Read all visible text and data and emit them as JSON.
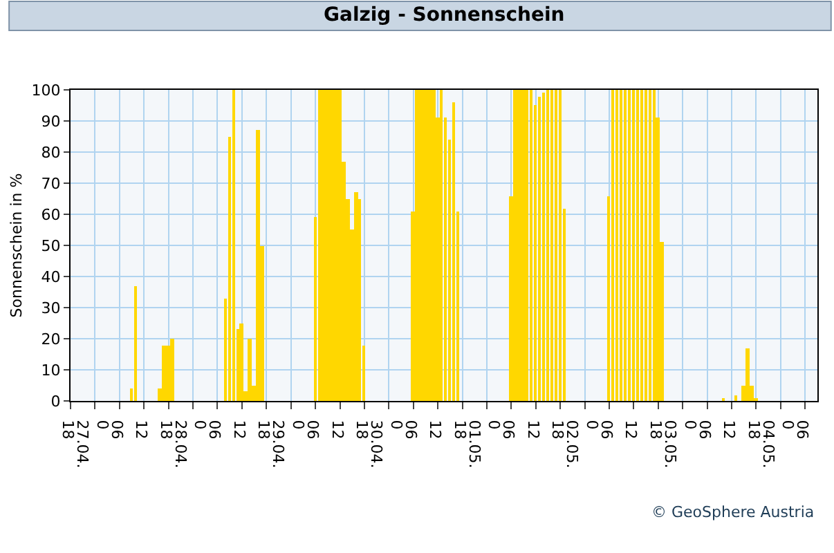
{
  "chart_data": {
    "type": "bar",
    "title": "Galzig - Sonnenschein",
    "ylabel": "Sonnenschein in %",
    "annotations": [
      "© GeoSphere Austria"
    ],
    "x": [
      "--04-27T09:00",
      "--04-27T10:00",
      "--04-27T16:00",
      "--04-27T17:00",
      "--04-27T18:00",
      "--04-27T19:00",
      "--04-28T08:00",
      "--04-28T09:00",
      "--04-28T10:00",
      "--04-28T11:00",
      "--04-28T12:00",
      "--04-28T13:00",
      "--04-28T14:00",
      "--04-28T15:00",
      "--04-28T16:00",
      "--04-28T17:00",
      "--04-29T06:00",
      "--04-29T07:00",
      "--04-29T08:00",
      "--04-29T09:00",
      "--04-29T10:00",
      "--04-29T11:00",
      "--04-29T12:00",
      "--04-29T13:00",
      "--04-29T14:00",
      "--04-29T15:00",
      "--04-29T16:00",
      "--04-29T17:00",
      "--04-29T18:00",
      "--04-30T06:00",
      "--04-30T07:00",
      "--04-30T08:00",
      "--04-30T09:00",
      "--04-30T10:00",
      "--04-30T11:00",
      "--04-30T12:00",
      "--04-30T13:00",
      "--04-30T14:00",
      "--04-30T15:00",
      "--04-30T16:00",
      "--04-30T17:00",
      "--05-01T06:00",
      "--05-01T07:00",
      "--05-01T08:00",
      "--05-01T09:00",
      "--05-01T10:00",
      "--05-01T11:00",
      "--05-01T12:00",
      "--05-01T13:00",
      "--05-01T14:00",
      "--05-01T15:00",
      "--05-01T16:00",
      "--05-01T17:00",
      "--05-01T18:00",
      "--05-01T19:00",
      "--05-02T06:00",
      "--05-02T07:00",
      "--05-02T08:00",
      "--05-02T09:00",
      "--05-02T10:00",
      "--05-02T11:00",
      "--05-02T12:00",
      "--05-02T13:00",
      "--05-02T14:00",
      "--05-02T15:00",
      "--05-02T16:00",
      "--05-02T17:00",
      "--05-02T18:00",
      "--05-02T19:00",
      "--05-03T10:00",
      "--05-03T13:00",
      "--05-03T15:00",
      "--05-03T16:00",
      "--05-03T17:00",
      "--05-03T18:00"
    ],
    "values": [
      4,
      37,
      4,
      18,
      18,
      20,
      33,
      85,
      100,
      23,
      25,
      3,
      20,
      5,
      87,
      50,
      59,
      100,
      100,
      100,
      100,
      100,
      100,
      77,
      65,
      55,
      67,
      65,
      18,
      61,
      100,
      100,
      100,
      100,
      100,
      91,
      100,
      91,
      84,
      96,
      61,
      66,
      100,
      100,
      100,
      100,
      100,
      95,
      98,
      99,
      100,
      100,
      100,
      100,
      62,
      66,
      100,
      100,
      100,
      100,
      100,
      100,
      100,
      100,
      100,
      100,
      100,
      91,
      51,
      1,
      2,
      5,
      17,
      5,
      1
    ],
    "color": "#ffd700",
    "xlim": [
      "--04-26T18:00",
      "--05-04T09:00"
    ],
    "xticks": [
      {
        "value": "--04-26T18:00",
        "label": "18"
      },
      {
        "value": "--04-27T00:00",
        "label": "0\n27.04."
      },
      {
        "value": "--04-27T06:00",
        "label": "06"
      },
      {
        "value": "--04-27T12:00",
        "label": "12"
      },
      {
        "value": "--04-27T18:00",
        "label": "18"
      },
      {
        "value": "--04-28T00:00",
        "label": "0\n28.04."
      },
      {
        "value": "--04-28T06:00",
        "label": "06"
      },
      {
        "value": "--04-28T12:00",
        "label": "12"
      },
      {
        "value": "--04-28T18:00",
        "label": "18"
      },
      {
        "value": "--04-29T00:00",
        "label": "0\n29.04."
      },
      {
        "value": "--04-29T06:00",
        "label": "06"
      },
      {
        "value": "--04-29T12:00",
        "label": "12"
      },
      {
        "value": "--04-29T18:00",
        "label": "18"
      },
      {
        "value": "--04-30T00:00",
        "label": "0\n30.04."
      },
      {
        "value": "--04-30T06:00",
        "label": "06"
      },
      {
        "value": "--04-30T12:00",
        "label": "12"
      },
      {
        "value": "--04-30T18:00",
        "label": "18"
      },
      {
        "value": "--05-01T00:00",
        "label": "0\n01.05."
      },
      {
        "value": "--05-01T06:00",
        "label": "06"
      },
      {
        "value": "--05-01T12:00",
        "label": "12"
      },
      {
        "value": "--05-01T18:00",
        "label": "18"
      },
      {
        "value": "--05-02T00:00",
        "label": "0\n02.05."
      },
      {
        "value": "--05-02T06:00",
        "label": "06"
      },
      {
        "value": "--05-02T12:00",
        "label": "12"
      },
      {
        "value": "--05-02T18:00",
        "label": "18"
      },
      {
        "value": "--05-03T00:00",
        "label": "0\n03.05."
      },
      {
        "value": "--05-03T06:00",
        "label": "06"
      },
      {
        "value": "--05-03T12:00",
        "label": "12"
      },
      {
        "value": "--05-03T18:00",
        "label": "18"
      },
      {
        "value": "--05-04T00:00",
        "label": "0\n04.05."
      },
      {
        "value": "--05-04T06:00",
        "label": "06"
      }
    ],
    "ylim": [
      0,
      100
    ],
    "yticks": [
      0,
      10,
      20,
      30,
      40,
      50,
      60,
      70,
      80,
      90,
      100
    ],
    "grid": true,
    "legend": false
  }
}
